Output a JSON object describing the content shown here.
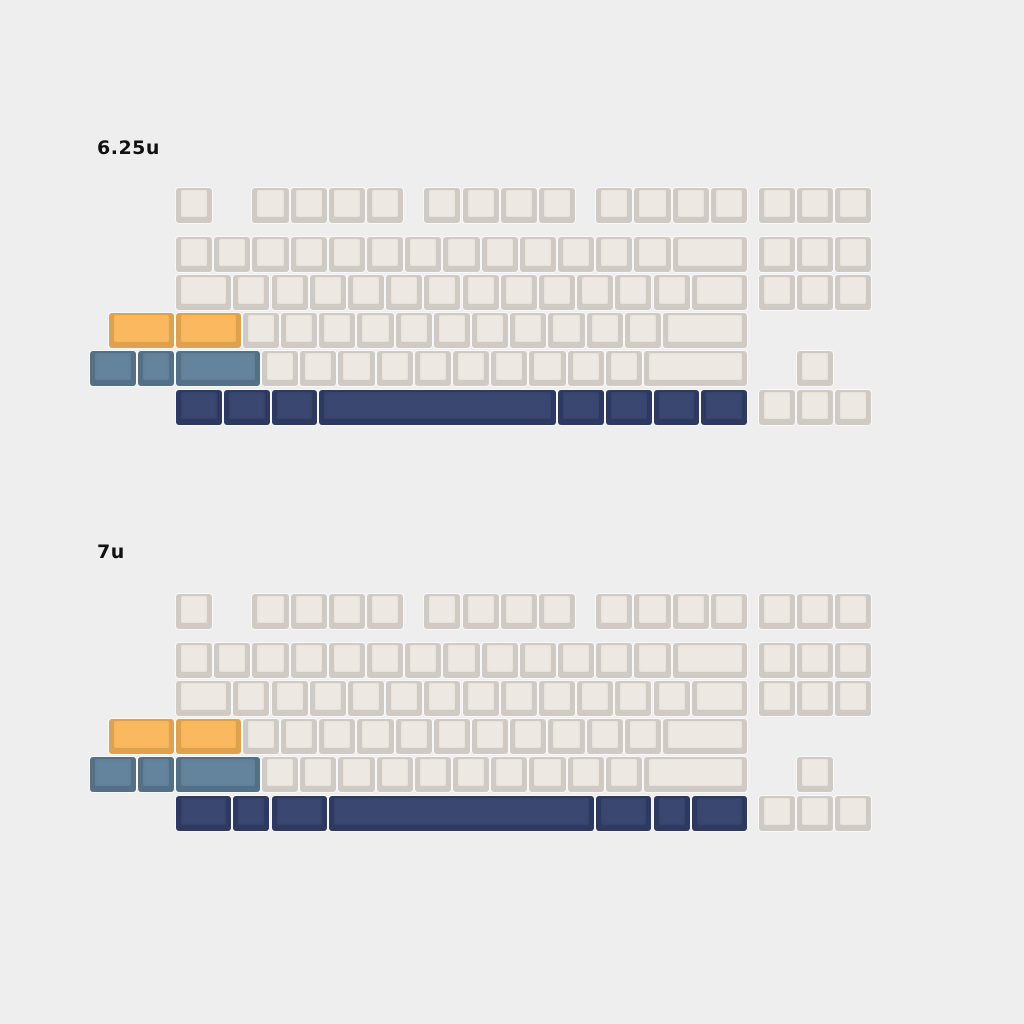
{
  "colors": {
    "background": "#eeeeee",
    "cream": "#ebe6df",
    "orange": "#fbb75a",
    "blue": "#5f7f99",
    "navy": "#34416c"
  },
  "layouts": [
    {
      "label": "6.25u",
      "bottom_row_units": [
        1.25,
        1.25,
        1.25,
        6.25,
        1.25,
        1.25,
        1.25,
        1.25
      ]
    },
    {
      "label": "7u",
      "bottom_row_units": [
        1.5,
        1,
        1.5,
        7,
        1.5,
        1,
        1.5
      ]
    }
  ]
}
